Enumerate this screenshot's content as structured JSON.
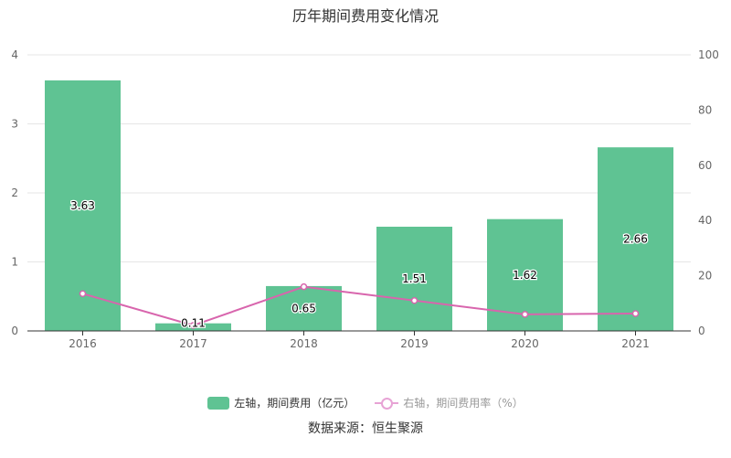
{
  "chart_data": {
    "type": "bar",
    "title": "历年期间费用变化情况",
    "source": "数据来源：恒生聚源",
    "categories": [
      "2016",
      "2017",
      "2018",
      "2019",
      "2020",
      "2021"
    ],
    "series": [
      {
        "name": "左轴，期间费用（亿元）",
        "type": "bar",
        "axis": "left",
        "values": [
          3.63,
          0.11,
          0.65,
          1.51,
          1.62,
          2.66
        ],
        "labels": [
          "3.63",
          "0.11",
          "0.65",
          "1.51",
          "1.62",
          "2.66"
        ],
        "color": "#5fc393"
      },
      {
        "name": "右轴，期间费用率（%）",
        "type": "line",
        "axis": "right",
        "values": [
          13.5,
          2.0,
          16.0,
          11.0,
          6.0,
          6.3
        ],
        "color": "#d865ad"
      }
    ],
    "y_left": {
      "min": 0,
      "max": 4,
      "ticks": [
        "0",
        "1",
        "2",
        "3",
        "4"
      ]
    },
    "y_right": {
      "min": 0,
      "max": 100,
      "ticks": [
        "0",
        "20",
        "40",
        "60",
        "80",
        "100"
      ]
    },
    "grid": true,
    "legend_position": "bottom"
  }
}
